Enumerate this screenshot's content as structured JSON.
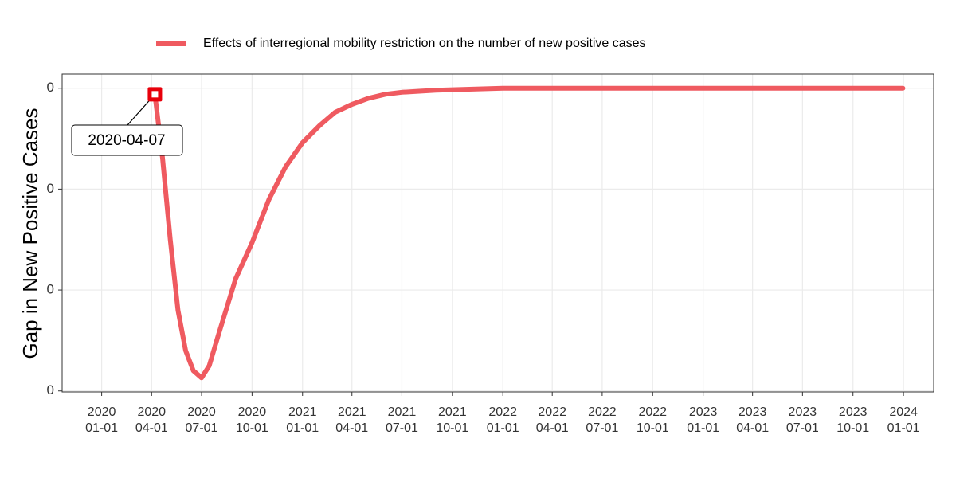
{
  "chart_data": {
    "type": "line",
    "y_label": "Gap in New Positive Cases",
    "x": [
      "2020-04-07",
      "2020-04-21",
      "2020-05-05",
      "2020-05-19",
      "2020-06-02",
      "2020-06-16",
      "2020-07-01",
      "2020-07-15",
      "2020-08-01",
      "2020-09-01",
      "2020-10-01",
      "2020-11-01",
      "2020-12-01",
      "2021-01-01",
      "2021-02-01",
      "2021-03-01",
      "2021-04-01",
      "2021-05-01",
      "2021-06-01",
      "2021-07-01",
      "2021-09-01",
      "2021-11-01",
      "2022-01-01",
      "2023-12-31"
    ],
    "series": [
      {
        "name": "Effects of interregional mobility restriction on the number of new positive cases",
        "color": "#EF5A60",
        "values": [
          -6e-05,
          -0.0007,
          -0.0015,
          -0.0022,
          -0.0026,
          -0.0028,
          -0.00287,
          -0.00275,
          -0.00244,
          -0.00189,
          -0.00153,
          -0.0011,
          -0.00078,
          -0.00054,
          -0.00037,
          -0.00024,
          -0.00016,
          -0.0001,
          -6e-05,
          -4e-05,
          -2e-05,
          -1e-05,
          0,
          0
        ]
      }
    ],
    "annotation": {
      "x": "2020-04-07",
      "y": -6e-05,
      "text": "2020-04-07",
      "marker_color": "#E8000B"
    },
    "xlim": [
      "2019-10-21",
      "2024-02-25"
    ],
    "xticks": [
      {
        "value": "2020-01-01",
        "label": [
          "2020",
          "01-01"
        ]
      },
      {
        "value": "2020-04-01",
        "label": [
          "2020",
          "04-01"
        ]
      },
      {
        "value": "2020-07-01",
        "label": [
          "2020",
          "07-01"
        ]
      },
      {
        "value": "2020-10-01",
        "label": [
          "2020",
          "10-01"
        ]
      },
      {
        "value": "2021-01-01",
        "label": [
          "2021",
          "01-01"
        ]
      },
      {
        "value": "2021-04-01",
        "label": [
          "2021",
          "04-01"
        ]
      },
      {
        "value": "2021-07-01",
        "label": [
          "2021",
          "07-01"
        ]
      },
      {
        "value": "2021-10-01",
        "label": [
          "2021",
          "10-01"
        ]
      },
      {
        "value": "2022-01-01",
        "label": [
          "2022",
          "01-01"
        ]
      },
      {
        "value": "2022-04-01",
        "label": [
          "2022",
          "04-01"
        ]
      },
      {
        "value": "2022-07-01",
        "label": [
          "2022",
          "07-01"
        ]
      },
      {
        "value": "2022-10-01",
        "label": [
          "2022",
          "10-01"
        ]
      },
      {
        "value": "2023-01-01",
        "label": [
          "2023",
          "01-01"
        ]
      },
      {
        "value": "2023-04-01",
        "label": [
          "2023",
          "04-01"
        ]
      },
      {
        "value": "2023-07-01",
        "label": [
          "2023",
          "07-01"
        ]
      },
      {
        "value": "2023-10-01",
        "label": [
          "2023",
          "10-01"
        ]
      },
      {
        "value": "2024-01-01",
        "label": [
          "2024",
          "01-01"
        ]
      }
    ],
    "ylim": [
      -0.00301,
      0.00014
    ],
    "yticks": [
      {
        "value": -0.003,
        "label": "0"
      },
      {
        "value": -0.002,
        "label": "0"
      },
      {
        "value": -0.001,
        "label": "0"
      },
      0
    ],
    "grid": true,
    "legend": "top"
  }
}
